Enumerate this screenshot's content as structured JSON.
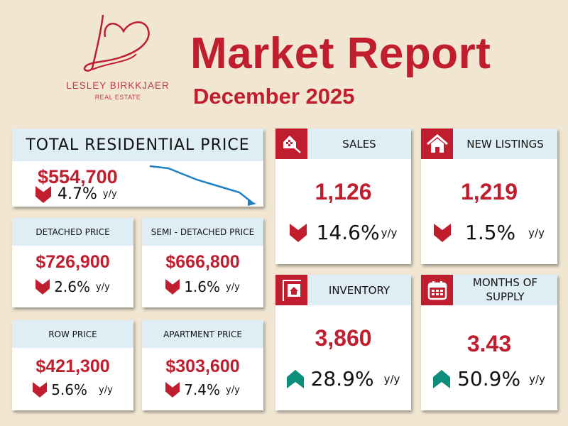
{
  "header": {
    "title": "Market Report",
    "subtitle": "December 2025",
    "brand_name": "LESLEY BIRKKJAER",
    "brand_sub": "REAL ESTATE"
  },
  "colors": {
    "accent": "#c01e2e",
    "header_bg": "#dfedf5",
    "background": "#f1e6d2",
    "up": "#0b8f7b",
    "trend_line": "#1f7fc4"
  },
  "total": {
    "label": "TOTAL RESIDENTIAL PRICE",
    "value": "$554,700",
    "change": "4.7%",
    "unit": "y/y",
    "direction": "down"
  },
  "detached": {
    "label": "DETACHED PRICE",
    "value": "$726,900",
    "change": "2.6%",
    "unit": "y/y",
    "direction": "down"
  },
  "semi": {
    "label": "SEMI - DETACHED PRICE",
    "value": "$666,800",
    "change": "1.6%",
    "unit": "y/y",
    "direction": "down"
  },
  "row": {
    "label": "ROW PRICE",
    "value": "$421,300",
    "change": "5.6%",
    "unit": "y/y",
    "direction": "down"
  },
  "apartment": {
    "label": "APARTMENT PRICE",
    "value": "$303,600",
    "change": "7.4%",
    "unit": "y/y",
    "direction": "down"
  },
  "sales": {
    "label": "SALES",
    "value": "1,126",
    "change": "14.6%",
    "unit": "y/y",
    "direction": "down",
    "icon": "house-key-icon"
  },
  "listings": {
    "label": "NEW LISTINGS",
    "value": "1,219",
    "change": "1.5%",
    "unit": "y/y",
    "direction": "down",
    "icon": "house-icon"
  },
  "inventory": {
    "label": "INVENTORY",
    "value": "3,860",
    "change": "28.9%",
    "unit": "y/y",
    "direction": "up",
    "icon": "house-sign-icon"
  },
  "supply": {
    "label": "MONTHS OF SUPPLY",
    "value": "3.43",
    "change": "50.9%",
    "unit": "y/y",
    "direction": "up",
    "icon": "calendar-icon"
  }
}
